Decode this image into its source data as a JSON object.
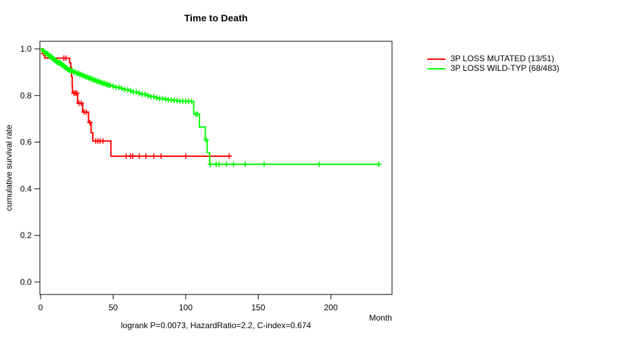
{
  "chart_data": {
    "type": "line",
    "subtype": "kaplan-meier-step",
    "title": "Time to Death",
    "xlabel": "Month",
    "ylabel": "cumulative survival rate",
    "annotation": "logrank P=0.0073, HazardRatio=2.2, C-index=0.674",
    "xlim": [
      0,
      242
    ],
    "ylim": [
      0.0,
      1.0
    ],
    "xtick_labels": [
      "0",
      "50",
      "100",
      "150",
      "200"
    ],
    "ytick_labels": [
      "0.0",
      "0.2",
      "0.4",
      "0.6",
      "0.8",
      "1.0"
    ],
    "grid": "off",
    "legend_position": "right-outside",
    "axis_color": "#000000",
    "series": [
      {
        "name": "3P LOSS MUTATED (13/51)",
        "color": "#ff0000",
        "events_over_n": "13/51",
        "points": [
          [
            0,
            1.0
          ],
          [
            1.5,
            0.98
          ],
          [
            3,
            0.96
          ],
          [
            20,
            0.94
          ],
          [
            20.8,
            0.92
          ],
          [
            21.3,
            0.88
          ],
          [
            21.8,
            0.84
          ],
          [
            22,
            0.81
          ],
          [
            25.5,
            0.767
          ],
          [
            29,
            0.729
          ],
          [
            33,
            0.684
          ],
          [
            34.8,
            0.64
          ],
          [
            36,
            0.605
          ],
          [
            48.5,
            0.54
          ],
          [
            130,
            0.54
          ]
        ],
        "censor_months": [
          2,
          16,
          17.5,
          23,
          24,
          25,
          26.5,
          28,
          30,
          31.5,
          34,
          38,
          39.5,
          41,
          43,
          59,
          62,
          63.5,
          68,
          72.5,
          78,
          83,
          100,
          130
        ]
      },
      {
        "name": "3P LOSS WILD-TYP (68/483)",
        "color": "#00ff00",
        "events_over_n": "68/483",
        "points": [
          [
            0,
            1.0
          ],
          [
            1,
            0.995
          ],
          [
            2,
            0.99
          ],
          [
            3,
            0.985
          ],
          [
            4,
            0.98
          ],
          [
            5,
            0.975
          ],
          [
            6,
            0.97
          ],
          [
            7,
            0.965
          ],
          [
            8,
            0.96
          ],
          [
            9,
            0.955
          ],
          [
            10,
            0.95
          ],
          [
            11,
            0.945
          ],
          [
            12,
            0.94
          ],
          [
            14,
            0.935
          ],
          [
            15,
            0.93
          ],
          [
            16,
            0.925
          ],
          [
            17,
            0.92
          ],
          [
            18,
            0.915
          ],
          [
            19,
            0.91
          ],
          [
            21,
            0.905
          ],
          [
            23,
            0.9
          ],
          [
            25,
            0.895
          ],
          [
            27,
            0.89
          ],
          [
            29,
            0.885
          ],
          [
            31,
            0.88
          ],
          [
            33,
            0.875
          ],
          [
            35,
            0.87
          ],
          [
            37,
            0.865
          ],
          [
            39,
            0.86
          ],
          [
            41,
            0.856
          ],
          [
            43,
            0.852
          ],
          [
            45,
            0.848
          ],
          [
            47,
            0.844
          ],
          [
            49,
            0.84
          ],
          [
            52,
            0.835
          ],
          [
            55,
            0.83
          ],
          [
            58,
            0.825
          ],
          [
            61,
            0.82
          ],
          [
            64,
            0.815
          ],
          [
            67,
            0.81
          ],
          [
            70,
            0.805
          ],
          [
            73,
            0.8
          ],
          [
            76,
            0.795
          ],
          [
            79,
            0.79
          ],
          [
            82,
            0.787
          ],
          [
            85,
            0.784
          ],
          [
            88,
            0.781
          ],
          [
            92,
            0.778
          ],
          [
            96,
            0.776
          ],
          [
            100,
            0.775
          ],
          [
            105.5,
            0.72
          ],
          [
            109.5,
            0.665
          ],
          [
            113.5,
            0.61
          ],
          [
            114.8,
            0.555
          ],
          [
            116.5,
            0.505
          ],
          [
            234,
            0.505
          ]
        ],
        "censor_months": [
          2,
          3,
          4,
          4.5,
          5,
          5.5,
          6,
          6.5,
          7,
          7.5,
          8,
          8.5,
          9,
          9.5,
          10,
          10.5,
          11,
          11.5,
          12,
          12.5,
          13,
          13.5,
          14,
          14.5,
          15,
          15.5,
          16,
          16.5,
          17,
          17.5,
          18,
          18.5,
          19,
          19.5,
          20,
          20.5,
          21,
          22,
          23,
          24,
          25,
          26,
          27,
          28,
          29,
          30,
          31,
          32,
          33,
          34,
          35,
          36,
          37,
          38,
          39,
          40,
          41,
          42,
          43,
          44,
          45,
          46,
          47,
          48,
          50,
          52,
          54,
          56,
          58,
          60,
          62,
          64,
          66,
          68,
          70,
          72,
          74,
          76,
          78,
          80,
          82,
          84,
          86,
          88,
          90,
          92,
          94,
          96,
          98,
          100,
          102,
          104,
          107,
          108,
          114,
          117,
          121,
          123,
          128,
          133,
          141,
          154,
          192,
          233
        ]
      }
    ]
  }
}
